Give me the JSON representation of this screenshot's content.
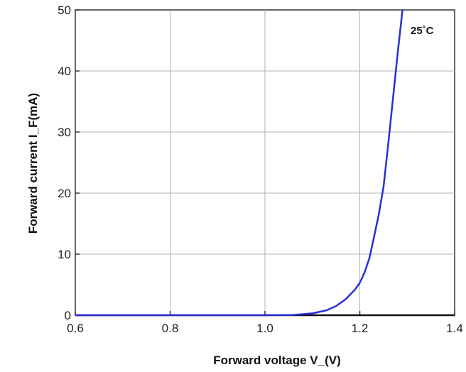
{
  "chart_data": {
    "type": "line",
    "xlabel": "Forward voltage V_(V)",
    "ylabel": "Forward current I_F(mA)",
    "annotation": "25˚C",
    "xlim": [
      0.6,
      1.4
    ],
    "ylim": [
      0,
      50
    ],
    "x_ticks": [
      "0.6",
      "0.8",
      "1.0",
      "1.2",
      "1.4"
    ],
    "y_ticks": [
      "0",
      "10",
      "20",
      "30",
      "40",
      "50"
    ],
    "grid": true,
    "series": [
      {
        "color": "#2a2fd4",
        "x": [
          0.6,
          0.8,
          1.0,
          1.06,
          1.1,
          1.13,
          1.15,
          1.17,
          1.19,
          1.2,
          1.21,
          1.22,
          1.23,
          1.24,
          1.25,
          1.26,
          1.27,
          1.28,
          1.29
        ],
        "y": [
          0,
          0,
          0,
          0.05,
          0.3,
          0.8,
          1.5,
          2.6,
          4.2,
          5.3,
          7.0,
          9.3,
          12.8,
          16.5,
          21.0,
          28.0,
          35.5,
          43.0,
          50.0
        ]
      }
    ]
  }
}
